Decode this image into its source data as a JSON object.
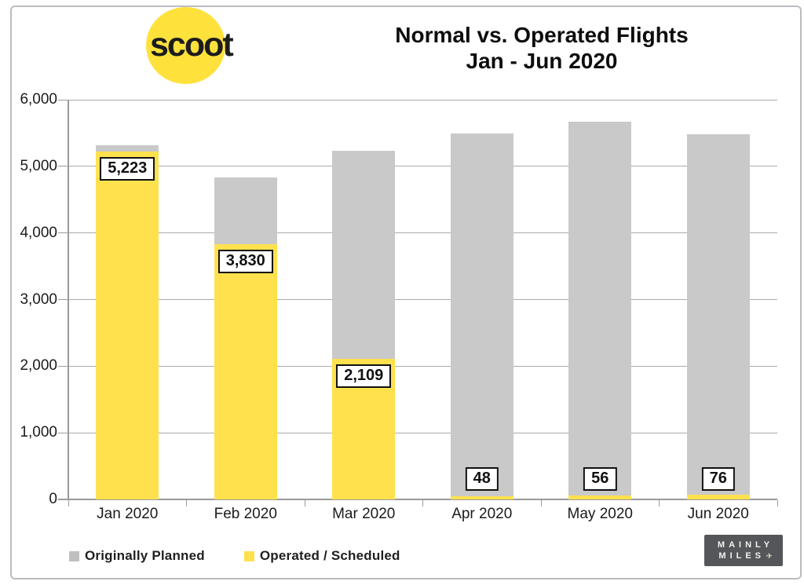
{
  "header": {
    "logo_text": "scoot",
    "title_line1": "Normal vs. Operated Flights",
    "title_line2": "Jan - Jun 2020"
  },
  "chart_data": {
    "type": "bar",
    "title": "Normal vs. Operated Flights Jan - Jun 2020",
    "categories": [
      "Jan 2020",
      "Feb 2020",
      "Mar 2020",
      "Apr 2020",
      "May 2020",
      "Jun 2020"
    ],
    "series": [
      {
        "name": "Originally Planned",
        "color": "#c9c9c9",
        "values": [
          5320,
          4830,
          5230,
          5490,
          5670,
          5480
        ]
      },
      {
        "name": "Operated / Scheduled",
        "color": "#ffe14e",
        "values": [
          5223,
          3830,
          2109,
          48,
          56,
          76
        ]
      }
    ],
    "value_labels": [
      "5,223",
      "3,830",
      "2,109",
      "48",
      "56",
      "76"
    ],
    "ylim": [
      0,
      6000
    ],
    "ytick_interval": 1000,
    "ytick_labels": [
      "0",
      "1,000",
      "2,000",
      "3,000",
      "4,000",
      "5,000",
      "6,000"
    ],
    "grid": true,
    "legend_position": "bottom-left",
    "bar_style": "overlay"
  },
  "legend": {
    "items": [
      {
        "label": "Originally Planned",
        "color": "#bfbfbf"
      },
      {
        "label": "Operated / Scheduled",
        "color": "#ffe14e"
      }
    ]
  },
  "footer_logo": {
    "line1": "MAINLY",
    "line2": "MILES",
    "bg": "#55565a"
  }
}
